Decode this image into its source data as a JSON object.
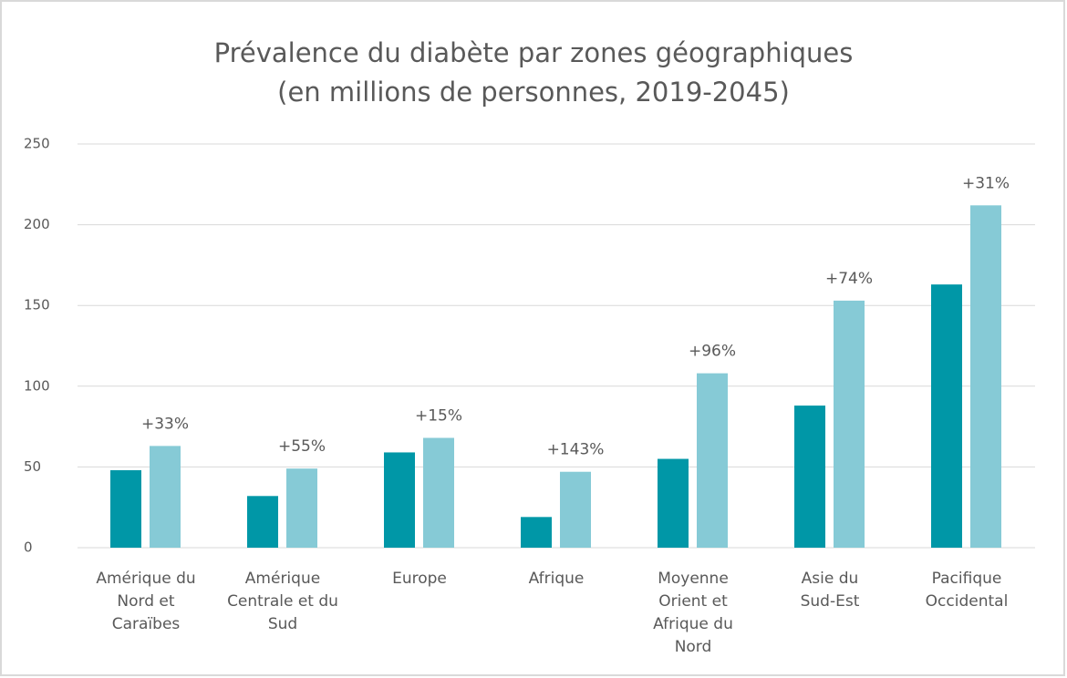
{
  "chart_data": {
    "type": "bar",
    "title": "Prévalence du diabète par zones géographiques",
    "subtitle": "(en millions de personnes, 2019-2045)",
    "categories": [
      "Amérique du Nord et Caraïbes",
      "Amérique Centrale et du Sud",
      "Europe",
      "Afrique",
      "Moyenne Orient et Afrique du Nord",
      "Asie du Sud-Est",
      "Pacifique Occidental"
    ],
    "series": [
      {
        "color": "#0097a7",
        "values": [
          48,
          32,
          59,
          19,
          55,
          88,
          163
        ]
      },
      {
        "color": "#86cad6",
        "values": [
          63,
          49,
          68,
          47,
          108,
          153,
          212
        ]
      }
    ],
    "annotations": [
      "+33%",
      "+55%",
      "+15%",
      "+143%",
      "+96%",
      "+74%",
      "+31%"
    ],
    "ylim": [
      0,
      250
    ],
    "yticks": [
      0,
      50,
      100,
      150,
      200,
      250
    ],
    "grid": true
  }
}
